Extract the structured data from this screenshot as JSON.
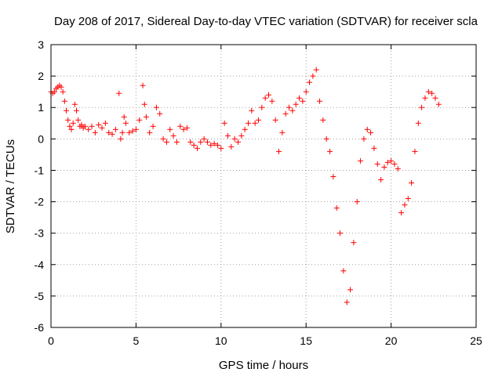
{
  "chart_data": {
    "type": "scatter",
    "title": "Day 208 of 2017, Sidereal Day-to-day VTEC variation (SDTVAR) for receiver scla",
    "xlabel": "GPS time / hours",
    "ylabel": "SDTVAR / TECUs",
    "xlim": [
      0,
      25
    ],
    "ylim": [
      -6,
      3
    ],
    "xticks": [
      0,
      5,
      10,
      15,
      20,
      25
    ],
    "yticks": [
      -6,
      -5,
      -4,
      -3,
      -2,
      -1,
      0,
      1,
      2,
      3
    ],
    "xtick_labels": [
      "0",
      "5",
      "10",
      "15",
      "20",
      "25"
    ],
    "ytick_labels": [
      "-6",
      "-5",
      "-4",
      "-3",
      "-2",
      "-1",
      "0",
      "1",
      "2",
      "3"
    ],
    "grid": true,
    "marker": "+",
    "color": "#ff0000",
    "series": [
      {
        "name": "SDTVAR",
        "x": [
          0.0,
          0.1,
          0.2,
          0.3,
          0.4,
          0.5,
          0.6,
          0.7,
          0.8,
          0.9,
          1.0,
          1.1,
          1.2,
          1.3,
          1.4,
          1.5,
          1.6,
          1.7,
          1.8,
          1.9,
          2.0,
          2.2,
          2.4,
          2.6,
          2.8,
          3.0,
          3.2,
          3.4,
          3.6,
          3.8,
          4.0,
          4.1,
          4.2,
          4.3,
          4.4,
          4.6,
          4.8,
          5.0,
          5.2,
          5.4,
          5.5,
          5.6,
          5.8,
          6.0,
          6.2,
          6.4,
          6.6,
          6.8,
          7.0,
          7.2,
          7.4,
          7.6,
          7.8,
          8.0,
          8.2,
          8.4,
          8.6,
          8.8,
          9.0,
          9.2,
          9.4,
          9.6,
          9.8,
          10.0,
          10.2,
          10.4,
          10.6,
          10.8,
          11.0,
          11.2,
          11.4,
          11.6,
          11.8,
          12.0,
          12.2,
          12.4,
          12.6,
          12.8,
          13.0,
          13.2,
          13.4,
          13.6,
          13.8,
          14.0,
          14.2,
          14.4,
          14.6,
          14.8,
          15.0,
          15.2,
          15.4,
          15.6,
          15.8,
          16.0,
          16.2,
          16.4,
          16.6,
          16.8,
          17.0,
          17.2,
          17.4,
          17.6,
          17.8,
          18.0,
          18.2,
          18.4,
          18.6,
          18.8,
          19.0,
          19.2,
          19.4,
          19.6,
          19.8,
          20.0,
          20.2,
          20.4,
          20.6,
          20.8,
          21.0,
          21.2,
          21.4,
          21.6,
          21.8,
          22.0,
          22.2,
          22.4,
          22.6,
          22.8
        ],
        "y": [
          1.5,
          1.45,
          1.5,
          1.6,
          1.65,
          1.7,
          1.65,
          1.5,
          1.2,
          0.9,
          0.6,
          0.4,
          0.3,
          0.5,
          1.1,
          0.9,
          0.6,
          0.4,
          0.45,
          0.35,
          0.4,
          0.3,
          0.4,
          0.2,
          0.45,
          0.35,
          0.5,
          0.2,
          0.15,
          0.3,
          1.45,
          0.0,
          0.2,
          0.7,
          0.5,
          0.2,
          0.25,
          0.3,
          0.6,
          1.7,
          1.1,
          0.7,
          0.2,
          0.4,
          1.0,
          0.8,
          0.0,
          -0.1,
          0.3,
          0.1,
          -0.1,
          0.4,
          0.3,
          0.35,
          -0.1,
          -0.2,
          -0.3,
          -0.1,
          0.0,
          -0.1,
          -0.2,
          -0.15,
          -0.2,
          -0.3,
          0.5,
          0.1,
          -0.25,
          0.0,
          -0.1,
          0.1,
          0.3,
          0.5,
          0.9,
          0.5,
          0.6,
          1.0,
          1.3,
          1.4,
          1.2,
          0.6,
          -0.4,
          0.2,
          0.8,
          1.0,
          0.9,
          1.1,
          1.3,
          1.2,
          1.5,
          1.8,
          2.0,
          2.2,
          1.2,
          0.6,
          0.0,
          -0.4,
          -1.2,
          -2.2,
          -3.0,
          -4.2,
          -5.2,
          -4.8,
          -3.3,
          -2.0,
          -0.7,
          0.0,
          0.3,
          0.2,
          -0.3,
          -0.8,
          -1.3,
          -0.9,
          -0.75,
          -0.7,
          -0.8,
          -0.95,
          -2.35,
          -2.1,
          -1.9,
          -1.4,
          -0.4,
          0.5,
          1.0,
          1.3,
          1.5,
          1.45,
          1.3,
          1.1
        ]
      }
    ]
  }
}
